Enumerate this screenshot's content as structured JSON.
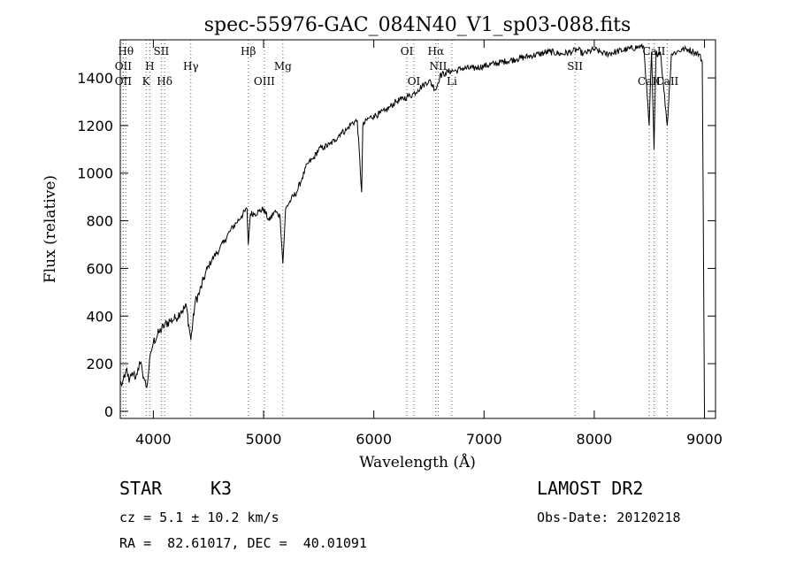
{
  "chart_data": {
    "type": "line",
    "title": "spec-55976-GAC_084N40_V1_sp03-088.fits",
    "xlabel": "Wavelength (Å)",
    "ylabel": "Flux (relative)",
    "xlim": [
      3700,
      9100
    ],
    "ylim": [
      -30,
      1560
    ],
    "xticks": [
      4000,
      5000,
      6000,
      7000,
      8000,
      9000
    ],
    "yticks": [
      0,
      200,
      400,
      600,
      800,
      1000,
      1200,
      1400
    ],
    "grid": false,
    "series": [
      {
        "name": "",
        "x": [
          3700,
          3720,
          3740,
          3760,
          3780,
          3800,
          3820,
          3840,
          3860,
          3880,
          3900,
          3920,
          3940,
          3960,
          3980,
          4000,
          4050,
          4100,
          4150,
          4200,
          4250,
          4300,
          4340,
          4380,
          4420,
          4460,
          4500,
          4550,
          4600,
          4650,
          4700,
          4750,
          4800,
          4850,
          4861,
          4880,
          4920,
          4960,
          5000,
          5050,
          5100,
          5150,
          5175,
          5200,
          5250,
          5300,
          5350,
          5400,
          5450,
          5500,
          5550,
          5600,
          5650,
          5700,
          5750,
          5800,
          5850,
          5890,
          5900,
          5950,
          6000,
          6050,
          6100,
          6150,
          6200,
          6250,
          6300,
          6350,
          6400,
          6450,
          6500,
          6563,
          6600,
          6650,
          6700,
          6750,
          6800,
          6900,
          7000,
          7100,
          7200,
          7300,
          7400,
          7500,
          7600,
          7700,
          7800,
          7850,
          7900,
          8000,
          8050,
          8100,
          8200,
          8300,
          8400,
          8450,
          8498,
          8520,
          8542,
          8560,
          8600,
          8662,
          8700,
          8750,
          8800,
          8850,
          8900,
          8950,
          8980,
          9000
        ],
        "y": [
          110,
          120,
          140,
          180,
          120,
          150,
          160,
          140,
          180,
          200,
          170,
          130,
          100,
          180,
          250,
          290,
          330,
          360,
          380,
          390,
          420,
          440,
          300,
          460,
          500,
          560,
          610,
          650,
          680,
          720,
          760,
          790,
          820,
          850,
          700,
          830,
          830,
          840,
          850,
          800,
          840,
          820,
          620,
          850,
          890,
          920,
          980,
          1040,
          1060,
          1100,
          1110,
          1120,
          1140,
          1170,
          1180,
          1210,
          1220,
          920,
          1200,
          1230,
          1240,
          1250,
          1260,
          1280,
          1300,
          1310,
          1320,
          1330,
          1350,
          1370,
          1390,
          1350,
          1410,
          1420,
          1430,
          1430,
          1440,
          1440,
          1450,
          1460,
          1470,
          1480,
          1490,
          1500,
          1510,
          1500,
          1510,
          1520,
          1500,
          1520,
          1510,
          1500,
          1510,
          1520,
          1530,
          1530,
          1200,
          1510,
          1100,
          1500,
          1510,
          1200,
          1500,
          1510,
          1520,
          1520,
          1510,
          1500,
          1470,
          0
        ]
      }
    ],
    "lines": [
      {
        "x": 3750,
        "label": "Hθ",
        "row": "top"
      },
      {
        "x": 3727,
        "label": "OII",
        "row": "mid"
      },
      {
        "x": 3727,
        "label": "OII",
        "row": "low"
      },
      {
        "x": 3934,
        "label": "K",
        "row": "low"
      },
      {
        "x": 3968,
        "label": "H",
        "row": "mid"
      },
      {
        "x": 4072,
        "label": "SII",
        "row": "top"
      },
      {
        "x": 4102,
        "label": "Hδ",
        "row": "low"
      },
      {
        "x": 4340,
        "label": "Hγ",
        "row": "mid"
      },
      {
        "x": 4861,
        "label": "Hβ",
        "row": "top"
      },
      {
        "x": 5007,
        "label": "OIII",
        "row": "low"
      },
      {
        "x": 5175,
        "label": "Mg",
        "row": "mid"
      },
      {
        "x": 6300,
        "label": "OI",
        "row": "top"
      },
      {
        "x": 6364,
        "label": "OI",
        "row": "low"
      },
      {
        "x": 6563,
        "label": "Hα",
        "row": "top"
      },
      {
        "x": 6584,
        "label": "NII",
        "row": "mid"
      },
      {
        "x": 6708,
        "label": "Li",
        "row": "low"
      },
      {
        "x": 7825,
        "label": "SII",
        "row": "mid"
      },
      {
        "x": 8498,
        "label": "CaII",
        "row": "low"
      },
      {
        "x": 8542,
        "label": "CaII",
        "row": "top"
      },
      {
        "x": 8662,
        "label": "CaII",
        "row": "low"
      }
    ]
  },
  "info": {
    "object_class": "STAR",
    "subclass": "K3",
    "survey": "LAMOST DR2",
    "cz": "cz = 5.1 ± 10.2 km/s",
    "obs_date": "Obs-Date: 20120218",
    "coords": "RA =  82.61017, DEC =  40.01091"
  }
}
